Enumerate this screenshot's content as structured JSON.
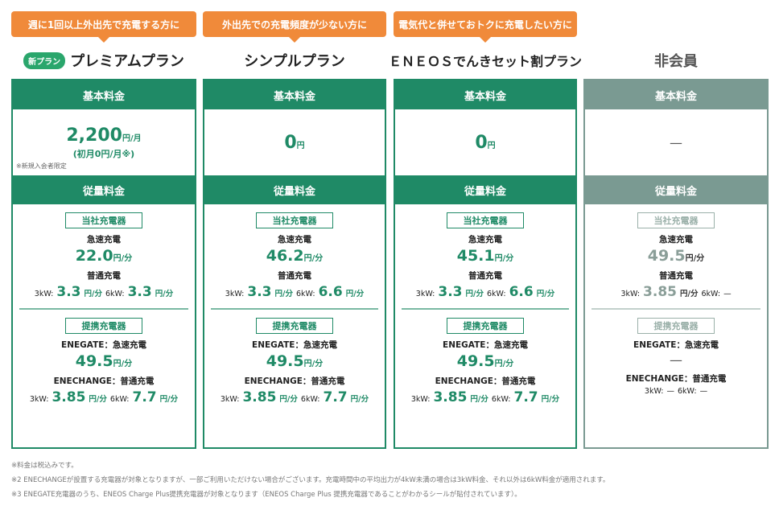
{
  "tags": [
    "週に1回以上外出先で充電する方に",
    "外出先での充電頻度が少ない方に",
    "電気代と併せておトクに充電したい方に"
  ],
  "plans": [
    {
      "name": "プレミアムプラン",
      "badge": "新プラン",
      "basic_header": "基本料金",
      "basic_value": "2,200",
      "basic_unit": "円/月",
      "basic_sub": "(初月0円/月※)",
      "basic_note": "※新規入会者限定",
      "usage_header": "従量料金",
      "own_label": "当社充電器",
      "fast_label": "急速充電",
      "fast_value": "22.0",
      "fast_unit": "円/分",
      "normal_label": "普通充電",
      "k3_label": "3kW:",
      "k3_value": "3.3",
      "k3_unit": "円/分",
      "k6_label": "6kW:",
      "k6_value": "3.3",
      "k6_unit": "円/分",
      "partner_label": "提携充電器",
      "eg_label": "ENEGATE：急速充電",
      "eg_value": "49.5",
      "eg_unit": "円/分",
      "ec_label": "ENECHANGE：普通充電",
      "ec3_label": "3kW:",
      "ec3_value": "3.85",
      "ec3_unit": "円/分",
      "ec6_label": "6kW:",
      "ec6_value": "7.7",
      "ec6_unit": "円/分"
    },
    {
      "name": "シンプルプラン",
      "basic_header": "基本料金",
      "basic_value": "0",
      "basic_unit": "円",
      "usage_header": "従量料金",
      "own_label": "当社充電器",
      "fast_label": "急速充電",
      "fast_value": "46.2",
      "fast_unit": "円/分",
      "normal_label": "普通充電",
      "k3_label": "3kW:",
      "k3_value": "3.3",
      "k3_unit": "円/分",
      "k6_label": "6kW:",
      "k6_value": "6.6",
      "k6_unit": "円/分",
      "partner_label": "提携充電器",
      "eg_label": "ENEGATE：急速充電",
      "eg_value": "49.5",
      "eg_unit": "円/分",
      "ec_label": "ENECHANGE：普通充電",
      "ec3_label": "3kW:",
      "ec3_value": "3.85",
      "ec3_unit": "円/分",
      "ec6_label": "6kW:",
      "ec6_value": "7.7",
      "ec6_unit": "円/分"
    },
    {
      "name": "ＥＮＥＯＳでんきセット割プラン",
      "basic_header": "基本料金",
      "basic_value": "0",
      "basic_unit": "円",
      "usage_header": "従量料金",
      "own_label": "当社充電器",
      "fast_label": "急速充電",
      "fast_value": "45.1",
      "fast_unit": "円/分",
      "normal_label": "普通充電",
      "k3_label": "3kW:",
      "k3_value": "3.3",
      "k3_unit": "円/分",
      "k6_label": "6kW:",
      "k6_value": "6.6",
      "k6_unit": "円/分",
      "partner_label": "提携充電器",
      "eg_label": "ENEGATE：急速充電",
      "eg_value": "49.5",
      "eg_unit": "円/分",
      "ec_label": "ENECHANGE：普通充電",
      "ec3_label": "3kW:",
      "ec3_value": "3.85",
      "ec3_unit": "円/分",
      "ec6_label": "6kW:",
      "ec6_value": "7.7",
      "ec6_unit": "円/分"
    },
    {
      "name": "非会員",
      "basic_header": "基本料金",
      "basic_value": "—",
      "usage_header": "従量料金",
      "own_label": "当社充電器",
      "fast_label": "急速充電",
      "fast_value": "49.5",
      "fast_unit": "円/分",
      "normal_label": "普通充電",
      "k3_label": "3kW:",
      "k3_value": "3.85",
      "k3_unit": "円/分",
      "k6_label": "6kW:",
      "k6_value": "—",
      "partner_label": "提携充電器",
      "eg_label": "ENEGATE：急速充電",
      "eg_value": "—",
      "ec_label": "ENECHANGE：普通充電",
      "ec3_label": "3kW:",
      "ec3_value": "—",
      "ec6_label": "6kW:",
      "ec6_value": "—"
    }
  ],
  "notes": [
    "※料金は税込みです。",
    "※2 ENECHANGEが設置する充電器が対象となりますが、一部ご利用いただけない場合がございます。充電時間中の平均出力が4kW未満の場合は3kW料金、それ以外は6kW料金が適用されます。",
    "※3 ENEGATE充電器のうち、ENEOS Charge Plus提携充電器が対象となります（ENEOS Charge Plus 提携充電器であることがわかるシールが貼付されています）。"
  ],
  "colors": {
    "green": "#1f8a66",
    "orange": "#f08a3a",
    "gray": "#7a9a92"
  }
}
